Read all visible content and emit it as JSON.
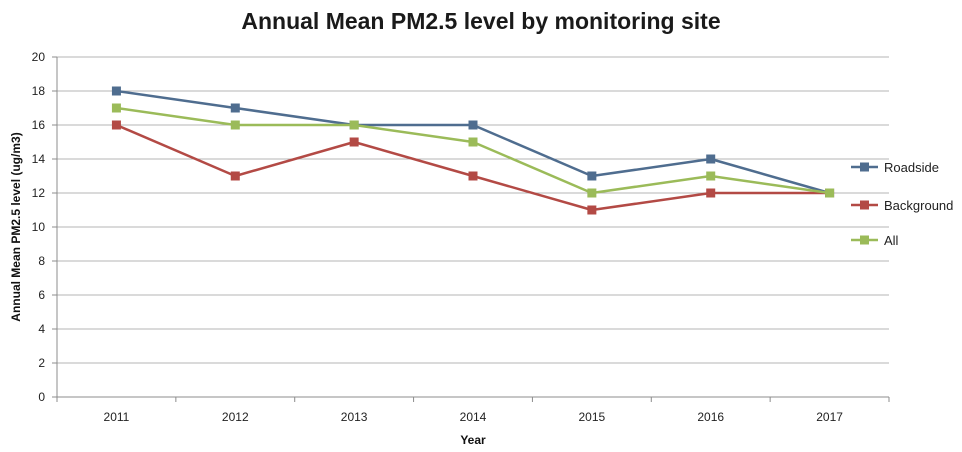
{
  "chart_data": {
    "type": "line",
    "title": "Annual Mean PM2.5 level by monitoring site",
    "xlabel": "Year",
    "ylabel": "Annual Mean PM2.5 level (ug/m3)",
    "categories": [
      "2011",
      "2012",
      "2013",
      "2014",
      "2015",
      "2016",
      "2017"
    ],
    "ylim": [
      0,
      20
    ],
    "yticks": [
      "0",
      "2",
      "4",
      "6",
      "8",
      "10",
      "12",
      "14",
      "16",
      "18",
      "20"
    ],
    "grid": true,
    "legend_position": "right",
    "series": [
      {
        "name": "Roadside",
        "color": "#4f6d8f",
        "values": [
          18,
          17,
          16,
          16,
          13,
          14,
          12
        ]
      },
      {
        "name": "Background",
        "color": "#b34a45",
        "values": [
          16,
          13,
          15,
          13,
          11,
          12,
          12
        ]
      },
      {
        "name": "All",
        "color": "#9bbb59",
        "values": [
          17,
          16,
          16,
          15,
          12,
          13,
          12
        ]
      }
    ]
  }
}
